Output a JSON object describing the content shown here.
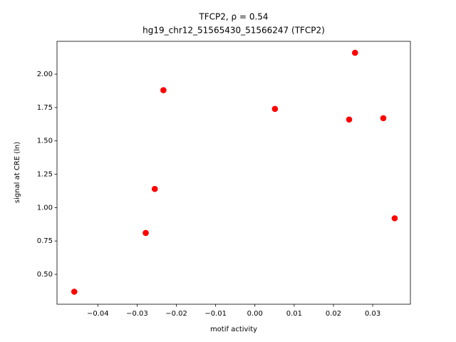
{
  "chart_data": {
    "type": "scatter",
    "title": "TFCP2, ρ = 0.54",
    "subtitle": "hg19_chr12_51565430_51566247 (TFCP2)",
    "x_label": "motif activity",
    "y_label": "signal at CRE (ln)",
    "color": "#ff0000",
    "x": [
      -0.046,
      -0.0278,
      -0.0255,
      -0.0233,
      0.0051,
      0.024,
      0.0255,
      0.0327,
      0.0356
    ],
    "y": [
      0.37,
      0.81,
      1.14,
      1.88,
      1.74,
      1.66,
      2.16,
      1.67,
      0.92
    ],
    "xlim": [
      -0.0504,
      0.0396
    ],
    "ylim": [
      0.276,
      2.246
    ],
    "xticks": [
      {
        "value": -0.04,
        "label": "−0.04"
      },
      {
        "value": -0.03,
        "label": "−0.03"
      },
      {
        "value": -0.02,
        "label": "−0.02"
      },
      {
        "value": -0.01,
        "label": "−0.01"
      },
      {
        "value": 0,
        "label": "0.00"
      },
      {
        "value": 0.01,
        "label": "0.01"
      },
      {
        "value": 0.02,
        "label": "0.02"
      },
      {
        "value": 0.03,
        "label": "0.03"
      }
    ],
    "yticks": [
      {
        "value": 0.5,
        "label": "0.50"
      },
      {
        "value": 0.75,
        "label": "0.75"
      },
      {
        "value": 1.0,
        "label": "1.00"
      },
      {
        "value": 1.25,
        "label": "1.25"
      },
      {
        "value": 1.5,
        "label": "1.50"
      },
      {
        "value": 1.75,
        "label": "1.75"
      },
      {
        "value": 2.0,
        "label": "2.00"
      }
    ]
  }
}
